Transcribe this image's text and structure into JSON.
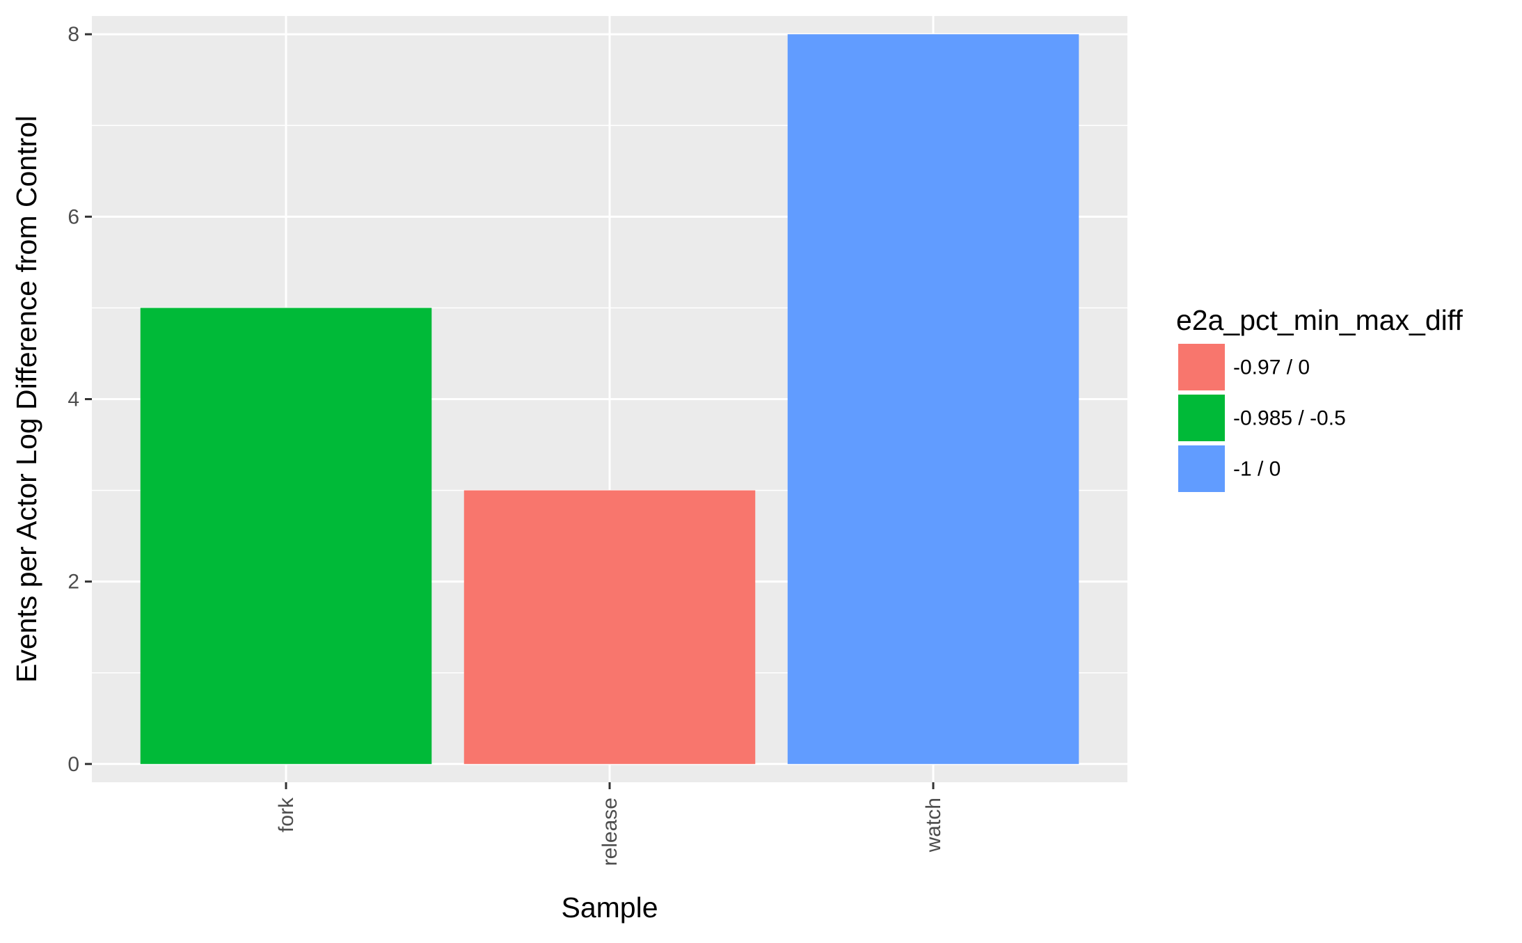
{
  "chart_data": {
    "type": "bar",
    "title": "",
    "xlabel": "Sample",
    "ylabel": "Events per Actor Log Difference from Control",
    "categories": [
      "fork",
      "release",
      "watch"
    ],
    "values": [
      5,
      3,
      8
    ],
    "fill_groups": [
      "-0.985 / -0.5",
      "-0.97 / 0",
      "-1 / 0"
    ],
    "ylim": [
      -0.2,
      8.2
    ],
    "yticks": [
      0,
      2,
      4,
      6,
      8
    ],
    "grid": true,
    "legend": {
      "title": "e2a_pct_min_max_diff",
      "position": "right",
      "entries": [
        {
          "label": "-0.97 / 0",
          "color": "#F8766D"
        },
        {
          "label": "-0.985 / -0.5",
          "color": "#00BA38"
        },
        {
          "label": "-1 / 0",
          "color": "#619CFF"
        }
      ]
    }
  },
  "colors": {
    "panel_background": "#EBEBEB",
    "grid": "#FFFFFF",
    "tick_mark": "#333333"
  }
}
